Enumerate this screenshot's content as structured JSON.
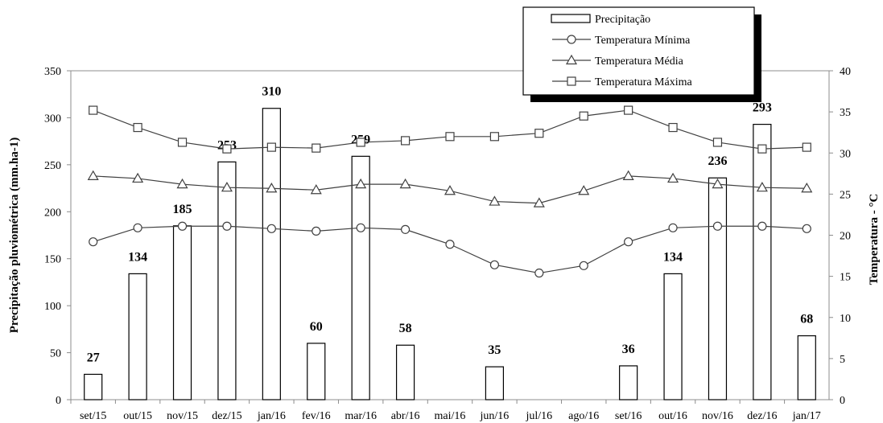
{
  "chart_data": {
    "type": "bar",
    "categories": [
      "set/15",
      "out/15",
      "nov/15",
      "dez/15",
      "jan/16",
      "fev/16",
      "mar/16",
      "abr/16",
      "mai/16",
      "jun/16",
      "jul/16",
      "ago/16",
      "set/16",
      "out/16",
      "nov/16",
      "dez/16",
      "jan/17"
    ],
    "y_left": {
      "label": "Precipitação pluviométrica (mm.ha-1)",
      "ylim": [
        0,
        350
      ],
      "ticks": [
        0,
        50,
        100,
        150,
        200,
        250,
        300,
        350
      ]
    },
    "y_right": {
      "label": "Temperatura - °C",
      "ylim": [
        0,
        40
      ],
      "ticks": [
        0,
        5,
        10,
        15,
        20,
        25,
        30,
        35,
        40
      ]
    },
    "bar_series": {
      "name": "Precipitação",
      "values": [
        27,
        134,
        185,
        253,
        310,
        60,
        259,
        58,
        0,
        35,
        0,
        0,
        36,
        134,
        236,
        293,
        68
      ],
      "labels": [
        "27",
        "134",
        "185",
        "253",
        "310",
        "60",
        "259",
        "58",
        "",
        "35",
        "",
        "",
        "36",
        "134",
        "236",
        "293",
        "68"
      ]
    },
    "line_series": [
      {
        "name": "Temperatura Mínima",
        "marker": "circle",
        "axis": "right",
        "values": [
          19.2,
          20.9,
          21.1,
          21.1,
          20.8,
          20.5,
          20.9,
          20.7,
          18.9,
          16.4,
          15.4,
          16.3,
          19.2,
          20.9,
          21.1,
          21.1,
          20.8
        ]
      },
      {
        "name": "Temperatura Média",
        "marker": "triangle",
        "axis": "right",
        "values": [
          27.2,
          26.9,
          26.2,
          25.8,
          25.7,
          25.5,
          26.2,
          26.2,
          25.4,
          24.1,
          23.9,
          25.4,
          27.2,
          26.9,
          26.2,
          25.8,
          25.7
        ]
      },
      {
        "name": "Temperatura Máxima",
        "marker": "square",
        "axis": "right",
        "values": [
          35.2,
          33.1,
          31.3,
          30.5,
          30.7,
          30.6,
          31.3,
          31.5,
          32.0,
          32.0,
          32.4,
          34.5,
          35.2,
          33.1,
          31.3,
          30.5,
          30.7
        ]
      }
    ],
    "legend": {
      "placement": "top-right",
      "entries": [
        "Precipitação",
        "Temperatura Mínima",
        "Temperatura Média",
        "Temperatura Máxima"
      ]
    },
    "grid": false
  }
}
